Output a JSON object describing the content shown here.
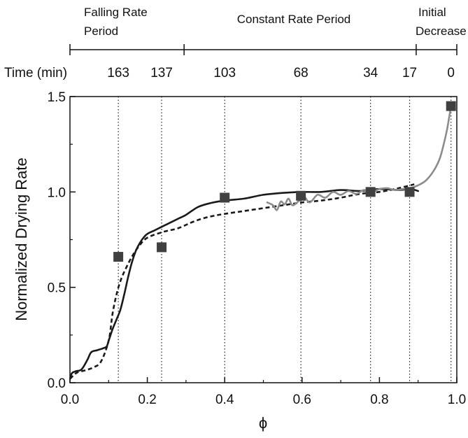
{
  "chart_data": {
    "type": "line",
    "xlabel": "ϕ",
    "ylabel": "Normalized Drying Rate",
    "xlim": [
      0.0,
      1.0
    ],
    "ylim": [
      0.0,
      1.5
    ],
    "x_ticks": [
      "0.0",
      "0.2",
      "0.4",
      "0.6",
      "0.8",
      "1.0"
    ],
    "y_ticks": [
      "0.0",
      "0.5",
      "1.0",
      "1.5"
    ],
    "grid": false,
    "periods": [
      {
        "lines": [
          "Falling Rate",
          "Period"
        ],
        "start": 0.0,
        "end": 0.295
      },
      {
        "lines": [
          "Constant Rate Period"
        ],
        "start": 0.295,
        "end": 0.895
      },
      {
        "lines": [
          "Initial",
          "Decrease"
        ],
        "start": 0.895,
        "end": 1.0
      }
    ],
    "time_row": {
      "label": "Time (min)",
      "ticks": [
        {
          "phi": 0.125,
          "label": "163"
        },
        {
          "phi": 0.237,
          "label": "137"
        },
        {
          "phi": 0.4,
          "label": "103"
        },
        {
          "phi": 0.597,
          "label": "68"
        },
        {
          "phi": 0.777,
          "label": "34"
        },
        {
          "phi": 0.878,
          "label": "17"
        },
        {
          "phi": 0.985,
          "label": "0"
        }
      ]
    },
    "series": [
      {
        "style": "markers",
        "color": "#404040",
        "points": [
          [
            0.125,
            0.66
          ],
          [
            0.237,
            0.71
          ],
          [
            0.4,
            0.97
          ],
          [
            0.597,
            0.98
          ],
          [
            0.777,
            1.0
          ],
          [
            0.878,
            1.0
          ],
          [
            0.985,
            1.45
          ]
        ]
      },
      {
        "style": "solid",
        "color": "#1a1a1a",
        "points": [
          [
            0.0,
            0.02
          ],
          [
            0.005,
            0.05
          ],
          [
            0.015,
            0.06
          ],
          [
            0.03,
            0.07
          ],
          [
            0.045,
            0.12
          ],
          [
            0.055,
            0.16
          ],
          [
            0.07,
            0.17
          ],
          [
            0.085,
            0.18
          ],
          [
            0.095,
            0.19
          ],
          [
            0.1,
            0.22
          ],
          [
            0.11,
            0.28
          ],
          [
            0.12,
            0.33
          ],
          [
            0.13,
            0.38
          ],
          [
            0.14,
            0.46
          ],
          [
            0.15,
            0.55
          ],
          [
            0.16,
            0.63
          ],
          [
            0.17,
            0.69
          ],
          [
            0.18,
            0.73
          ],
          [
            0.19,
            0.76
          ],
          [
            0.2,
            0.78
          ],
          [
            0.22,
            0.8
          ],
          [
            0.25,
            0.83
          ],
          [
            0.28,
            0.86
          ],
          [
            0.3,
            0.88
          ],
          [
            0.33,
            0.92
          ],
          [
            0.36,
            0.94
          ],
          [
            0.4,
            0.955
          ],
          [
            0.45,
            0.965
          ],
          [
            0.5,
            0.985
          ],
          [
            0.55,
            0.995
          ],
          [
            0.6,
            1.0
          ],
          [
            0.65,
            1.0
          ],
          [
            0.7,
            1.01
          ],
          [
            0.75,
            1.005
          ],
          [
            0.8,
            1.015
          ],
          [
            0.85,
            1.01
          ],
          [
            0.88,
            1.015
          ],
          [
            0.9,
            1.005
          ]
        ]
      },
      {
        "style": "dashed",
        "color": "#1a1a1a",
        "points": [
          [
            0.0,
            0.02
          ],
          [
            0.01,
            0.04
          ],
          [
            0.02,
            0.055
          ],
          [
            0.04,
            0.065
          ],
          [
            0.06,
            0.08
          ],
          [
            0.08,
            0.11
          ],
          [
            0.1,
            0.22
          ],
          [
            0.11,
            0.36
          ],
          [
            0.12,
            0.46
          ],
          [
            0.13,
            0.53
          ],
          [
            0.14,
            0.58
          ],
          [
            0.16,
            0.66
          ],
          [
            0.18,
            0.72
          ],
          [
            0.2,
            0.76
          ],
          [
            0.24,
            0.79
          ],
          [
            0.28,
            0.81
          ],
          [
            0.32,
            0.845
          ],
          [
            0.36,
            0.87
          ],
          [
            0.4,
            0.885
          ],
          [
            0.45,
            0.9
          ],
          [
            0.5,
            0.915
          ],
          [
            0.55,
            0.93
          ],
          [
            0.6,
            0.945
          ],
          [
            0.65,
            0.955
          ],
          [
            0.7,
            0.97
          ],
          [
            0.75,
            0.99
          ],
          [
            0.8,
            1.0
          ],
          [
            0.85,
            1.02
          ],
          [
            0.89,
            1.04
          ]
        ]
      },
      {
        "style": "solid",
        "color": "#8c8c8c",
        "points": [
          [
            0.51,
            0.945
          ],
          [
            0.525,
            0.93
          ],
          [
            0.535,
            0.905
          ],
          [
            0.545,
            0.95
          ],
          [
            0.555,
            0.935
          ],
          [
            0.565,
            0.965
          ],
          [
            0.575,
            0.93
          ],
          [
            0.59,
            0.95
          ],
          [
            0.605,
            0.975
          ],
          [
            0.62,
            0.945
          ],
          [
            0.64,
            0.985
          ],
          [
            0.66,
            0.97
          ],
          [
            0.68,
            1.0
          ],
          [
            0.7,
            0.985
          ],
          [
            0.72,
            1.005
          ],
          [
            0.74,
            0.99
          ],
          [
            0.76,
            1.01
          ],
          [
            0.78,
            1.0
          ],
          [
            0.8,
            1.015
          ],
          [
            0.82,
            1.02
          ],
          [
            0.84,
            1.01
          ],
          [
            0.86,
            1.015
          ],
          [
            0.88,
            1.02
          ],
          [
            0.9,
            1.035
          ],
          [
            0.92,
            1.06
          ],
          [
            0.94,
            1.11
          ],
          [
            0.955,
            1.17
          ],
          [
            0.965,
            1.24
          ],
          [
            0.975,
            1.33
          ],
          [
            0.985,
            1.45
          ]
        ]
      }
    ]
  }
}
